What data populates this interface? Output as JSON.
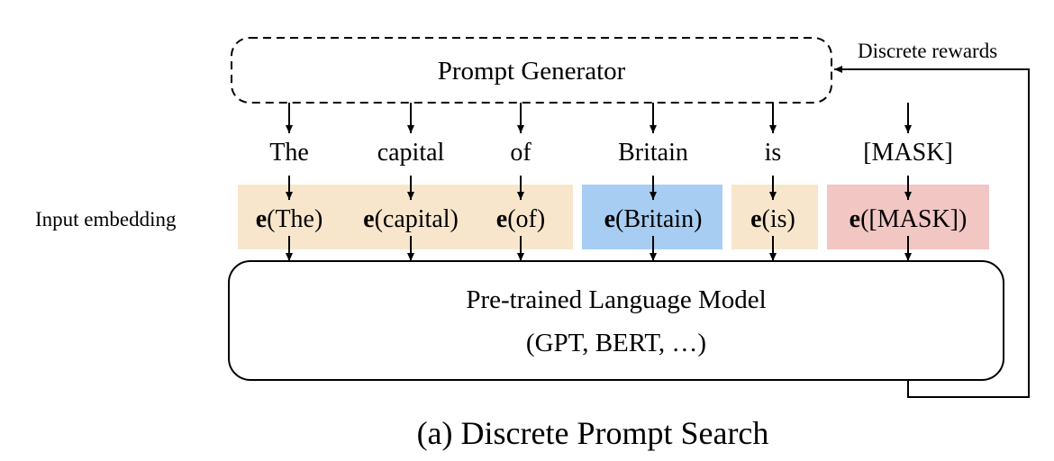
{
  "generator": {
    "label": "Prompt Generator"
  },
  "feedback": {
    "label": "Discrete rewards"
  },
  "input_embedding_label": "Input embedding",
  "tokens": [
    {
      "word": "The",
      "embed_prefix": "e",
      "embed_arg": "(The)",
      "group": "prompt"
    },
    {
      "word": "capital",
      "embed_prefix": "e",
      "embed_arg": "(capital)",
      "group": "prompt"
    },
    {
      "word": "of",
      "embed_prefix": "e",
      "embed_arg": "(of)",
      "group": "prompt"
    },
    {
      "word": "Britain",
      "embed_prefix": "e",
      "embed_arg": "(Britain)",
      "group": "input"
    },
    {
      "word": "is",
      "embed_prefix": "e",
      "embed_arg": "(is)",
      "group": "prompt"
    },
    {
      "word": "[MASK]",
      "embed_prefix": "e",
      "embed_arg": "([MASK])",
      "group": "mask"
    }
  ],
  "model": {
    "line1": "Pre-trained Language Model",
    "line2": "(GPT, BERT, …)"
  },
  "caption": "(a) Discrete Prompt Search",
  "colors": {
    "prompt_fill": "#f8e6cc",
    "input_fill": "#a8cdf2",
    "mask_fill": "#f2c6c3",
    "stroke": "#000000"
  }
}
